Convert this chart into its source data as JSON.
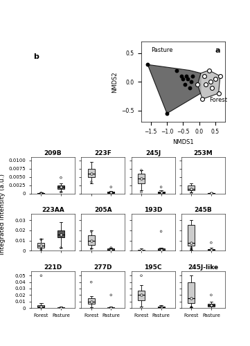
{
  "nmds": {
    "pasture_hull": [
      [
        -1.6,
        0.3
      ],
      [
        -1.0,
        -0.55
      ],
      [
        0.05,
        -0.2
      ],
      [
        0.05,
        0.15
      ],
      [
        -0.3,
        0.2
      ]
    ],
    "forest_hull": [
      [
        -0.05,
        -0.05
      ],
      [
        0.1,
        -0.3
      ],
      [
        0.6,
        -0.2
      ],
      [
        0.65,
        0.1
      ],
      [
        0.3,
        0.2
      ],
      [
        0.05,
        0.15
      ]
    ],
    "pasture_pts": [
      [
        -1.6,
        0.3
      ],
      [
        -1.0,
        -0.55
      ],
      [
        -0.7,
        0.2
      ],
      [
        -0.55,
        0.1
      ],
      [
        -0.5,
        0.05
      ],
      [
        -0.45,
        -0.05
      ],
      [
        -0.4,
        0.1
      ],
      [
        -0.35,
        0.05
      ],
      [
        -0.3,
        -0.1
      ],
      [
        -0.25,
        0.0
      ],
      [
        -0.2,
        0.1
      ]
    ],
    "forest_pts": [
      [
        -0.05,
        -0.05
      ],
      [
        0.1,
        -0.3
      ],
      [
        0.6,
        -0.2
      ],
      [
        0.65,
        0.1
      ],
      [
        0.3,
        0.2
      ],
      [
        0.15,
        0.1
      ],
      [
        0.2,
        -0.05
      ],
      [
        0.35,
        0.0
      ],
      [
        0.4,
        -0.1
      ],
      [
        0.5,
        0.05
      ]
    ],
    "xlim": [
      -1.8,
      0.8
    ],
    "ylim": [
      -0.7,
      0.7
    ],
    "xticks": [
      -1.5,
      -1.0,
      -0.5,
      0.0,
      0.5
    ],
    "yticks": [
      -0.5,
      0.0,
      0.5
    ],
    "pasture_color": "#555555",
    "forest_color": "#bbbbbb",
    "xlabel": "NMDS1",
    "ylabel": "NMDS2",
    "label_a": "a",
    "label_pasture": "Pasture",
    "label_forest": "Forest"
  },
  "boxplots": {
    "row1": {
      "titles": [
        "209B",
        "223F",
        "245J",
        "253M"
      ],
      "ylim": [
        0,
        0.011
      ],
      "yticks": [
        0,
        0.0025,
        0.005,
        0.0075,
        0.01
      ],
      "yticklabels": [
        "0",
        "0.0025",
        "0.0050",
        "0.0075",
        "0.0100"
      ],
      "forest_color": "#cccccc",
      "pasture_color": "#555555",
      "data": {
        "209B": {
          "forest": {
            "q1": 0.0,
            "median": 0.0001,
            "q3": 0.0002,
            "whisker_low": 0.0,
            "whisker_high": 0.0003,
            "outliers": [
              0.0001,
              0.00015
            ],
            "mean": 0.0001
          },
          "pasture": {
            "q1": 0.0015,
            "median": 0.002,
            "q3": 0.0025,
            "whisker_low": 0.0005,
            "whisker_high": 0.003,
            "outliers": [
              0.0005,
              0.0048
            ],
            "mean": 0.002
          }
        },
        "223F": {
          "forest": {
            "q1": 0.005,
            "median": 0.006,
            "q3": 0.0075,
            "whisker_low": 0.003,
            "whisker_high": 0.0095,
            "outliers": [
              0.0035
            ],
            "mean": 0.006
          },
          "pasture": {
            "q1": 0.0002,
            "median": 0.0003,
            "q3": 0.0005,
            "whisker_low": 0.0,
            "whisker_high": 0.0008,
            "outliers": [
              0.002
            ],
            "mean": 0.0003
          }
        },
        "245J": {
          "forest": {
            "q1": 0.003,
            "median": 0.0045,
            "q3": 0.006,
            "whisker_low": 0.001,
            "whisker_high": 0.007,
            "outliers": [
              0.0005,
              0.007
            ],
            "mean": 0.0045
          },
          "pasture": {
            "q1": 0.0002,
            "median": 0.0003,
            "q3": 0.0005,
            "whisker_low": 0.0,
            "whisker_high": 0.001,
            "outliers": [
              0.002
            ],
            "mean": 0.0003
          }
        },
        "253M": {
          "forest": {
            "q1": 0.001,
            "median": 0.0015,
            "q3": 0.0025,
            "whisker_low": 0.0003,
            "whisker_high": 0.003,
            "outliers": [
              0.0002
            ],
            "mean": 0.0015
          },
          "pasture": {
            "q1": 5e-05,
            "median": 0.0001,
            "q3": 0.00015,
            "whisker_low": 0.0,
            "whisker_high": 0.0003,
            "outliers": [],
            "mean": 0.0001
          }
        }
      }
    },
    "row2": {
      "titles": [
        "223AA",
        "205A",
        "193D",
        "245B"
      ],
      "ylim": [
        0,
        0.036
      ],
      "yticks": [
        0,
        0.01,
        0.02,
        0.03
      ],
      "yticklabels": [
        "0",
        "0.01",
        "0.02",
        "0.03"
      ],
      "forest_color": "#cccccc",
      "pasture_color": "#555555",
      "data": {
        "223AA": {
          "forest": {
            "q1": 0.003,
            "median": 0.005,
            "q3": 0.008,
            "whisker_low": 0.0,
            "whisker_high": 0.012,
            "outliers": [
              0.001,
              0.011,
              0.001
            ],
            "mean": 0.005
          },
          "pasture": {
            "q1": 0.013,
            "median": 0.016,
            "q3": 0.02,
            "whisker_low": 0.003,
            "whisker_high": 0.028,
            "outliers": [
              0.003
            ],
            "mean": 0.016
          }
        },
        "205A": {
          "forest": {
            "q1": 0.006,
            "median": 0.01,
            "q3": 0.015,
            "whisker_low": 0.002,
            "whisker_high": 0.02,
            "outliers": [
              0.002,
              0.019
            ],
            "mean": 0.01
          },
          "pasture": {
            "q1": 0.0005,
            "median": 0.001,
            "q3": 0.002,
            "whisker_low": 0.0,
            "whisker_high": 0.003,
            "outliers": [
              0.003
            ],
            "mean": 0.001
          }
        },
        "193D": {
          "forest": {
            "q1": 0.0,
            "median": 0.0003,
            "q3": 0.001,
            "whisker_low": 0.0,
            "whisker_high": 0.002,
            "outliers": [],
            "mean": 0.0003
          },
          "pasture": {
            "q1": 0.0005,
            "median": 0.001,
            "q3": 0.002,
            "whisker_low": 0.0,
            "whisker_high": 0.003,
            "outliers": [
              0.019
            ],
            "mean": 0.001
          }
        },
        "245B": {
          "forest": {
            "q1": 0.005,
            "median": 0.008,
            "q3": 0.025,
            "whisker_low": 0.001,
            "whisker_high": 0.03,
            "outliers": [
              0.001,
              0.002,
              0.003
            ],
            "mean": 0.008
          },
          "pasture": {
            "q1": 0.0003,
            "median": 0.0008,
            "q3": 0.0015,
            "whisker_low": 0.0,
            "whisker_high": 0.003,
            "outliers": [
              0.008
            ],
            "mean": 0.0008
          }
        }
      }
    },
    "row3": {
      "titles": [
        "221D",
        "277D",
        "195C",
        "245J-like"
      ],
      "ylim": [
        0,
        0.057
      ],
      "yticks": [
        0,
        0.01,
        0.02,
        0.03,
        0.04,
        0.05
      ],
      "yticklabels": [
        "0",
        "0.01",
        "0.02",
        "0.03",
        "0.04",
        "0.05"
      ],
      "forest_color": "#cccccc",
      "pasture_color": "#555555",
      "data": {
        "221D": {
          "forest": {
            "q1": 0.001,
            "median": 0.002,
            "q3": 0.004,
            "whisker_low": 0.0,
            "whisker_high": 0.008,
            "outliers": [
              0.05
            ],
            "mean": 0.002
          },
          "pasture": {
            "q1": 0.0002,
            "median": 0.0005,
            "q3": 0.001,
            "whisker_low": 0.0,
            "whisker_high": 0.002,
            "outliers": [],
            "mean": 0.0005
          }
        },
        "277D": {
          "forest": {
            "q1": 0.006,
            "median": 0.01,
            "q3": 0.015,
            "whisker_low": 0.001,
            "whisker_high": 0.018,
            "outliers": [
              0.04
            ],
            "mean": 0.01
          },
          "pasture": {
            "q1": 0.0002,
            "median": 0.0005,
            "q3": 0.001,
            "whisker_low": 0.0,
            "whisker_high": 0.002,
            "outliers": [
              0.02
            ],
            "mean": 0.0005
          }
        },
        "195C": {
          "forest": {
            "q1": 0.012,
            "median": 0.02,
            "q3": 0.027,
            "whisker_low": 0.002,
            "whisker_high": 0.035,
            "outliers": [
              0.0,
              0.05
            ],
            "mean": 0.02
          },
          "pasture": {
            "q1": 0.0003,
            "median": 0.0008,
            "q3": 0.002,
            "whisker_low": 0.0,
            "whisker_high": 0.004,
            "outliers": [
              0.002
            ],
            "mean": 0.0008
          }
        },
        "245J-like": {
          "forest": {
            "q1": 0.008,
            "median": 0.015,
            "q3": 0.04,
            "whisker_low": 0.001,
            "whisker_high": 0.05,
            "outliers": [
              0.0,
              0.001,
              0.001
            ],
            "mean": 0.015
          },
          "pasture": {
            "q1": 0.002,
            "median": 0.004,
            "q3": 0.006,
            "whisker_low": 0.0,
            "whisker_high": 0.01,
            "outliers": [
              0.02
            ],
            "mean": 0.004
          }
        }
      }
    }
  },
  "ylabel_shared": "Integrated Intensity (a.u.)",
  "label_b": "b"
}
